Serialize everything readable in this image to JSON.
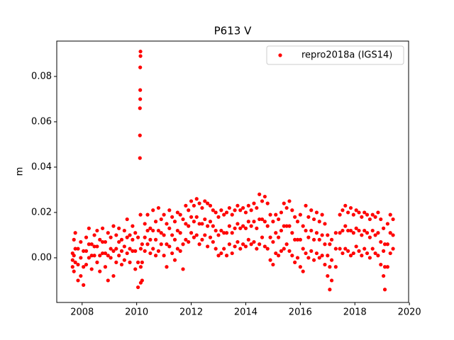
{
  "chart_data": {
    "type": "scatter",
    "title": "P613 V",
    "y_label": "m",
    "xlim": [
      2007.07,
      2019.97
    ],
    "xticks": [
      2008,
      2010,
      2012,
      2014,
      2016,
      2018,
      2020
    ],
    "ylim": [
      -0.0197,
      0.0956
    ],
    "yticks": [
      {
        "value": 0,
        "label": "0.00"
      },
      {
        "value": 0.02,
        "label": "0.02"
      },
      {
        "value": 0.04,
        "label": "0.04"
      },
      {
        "value": 0.06,
        "label": "0.06"
      },
      {
        "value": 0.08,
        "label": "0.08"
      }
    ],
    "legend": "upper right",
    "series": [
      {
        "name": "repro2018a (IGS14)",
        "color": "#ff0000",
        "x": [
          2007.65,
          2007.65,
          2007.65,
          2007.7,
          2007.7,
          2007.7,
          2007.75,
          2007.75,
          2007.75,
          2007.85,
          2007.85,
          2007.85,
          2007.95,
          2007.95,
          2007.95,
          2008.05,
          2008.05,
          2008.05,
          2008.15,
          2008.15,
          2008.15,
          2008.25,
          2008.25,
          2008.25,
          2008.35,
          2008.35,
          2008.35,
          2008.45,
          2008.45,
          2008.45,
          2008.55,
          2008.55,
          2008.55,
          2008.65,
          2008.65,
          2008.65,
          2008.75,
          2008.75,
          2008.75,
          2008.85,
          2008.85,
          2008.85,
          2008.95,
          2008.95,
          2008.95,
          2009.05,
          2009.05,
          2009.05,
          2009.15,
          2009.15,
          2009.15,
          2009.25,
          2009.25,
          2009.25,
          2009.35,
          2009.35,
          2009.35,
          2009.45,
          2009.45,
          2009.45,
          2009.55,
          2009.55,
          2009.55,
          2009.65,
          2009.65,
          2009.65,
          2009.75,
          2009.75,
          2009.75,
          2009.85,
          2009.85,
          2009.85,
          2009.95,
          2009.95,
          2009.95,
          2010.05,
          2010.05,
          2010.05,
          2010.12,
          2010.12,
          2010.12,
          2010.13,
          2010.13,
          2010.13,
          2010.14,
          2010.14,
          2010.14,
          2010.15,
          2010.15,
          2010.15,
          2010.2,
          2010.2,
          2010.2,
          2010.3,
          2010.3,
          2010.3,
          2010.4,
          2010.4,
          2010.4,
          2010.5,
          2010.5,
          2010.5,
          2010.6,
          2010.6,
          2010.6,
          2010.7,
          2010.7,
          2010.7,
          2010.8,
          2010.8,
          2010.8,
          2010.9,
          2010.9,
          2010.9,
          2011,
          2011,
          2011,
          2011.1,
          2011.1,
          2011.1,
          2011.2,
          2011.2,
          2011.2,
          2011.3,
          2011.3,
          2011.3,
          2011.4,
          2011.4,
          2011.4,
          2011.5,
          2011.5,
          2011.5,
          2011.6,
          2011.6,
          2011.6,
          2011.7,
          2011.7,
          2011.7,
          2011.8,
          2011.8,
          2011.8,
          2011.9,
          2011.9,
          2011.9,
          2012,
          2012,
          2012,
          2012.1,
          2012.1,
          2012.1,
          2012.2,
          2012.2,
          2012.2,
          2012.3,
          2012.3,
          2012.3,
          2012.4,
          2012.4,
          2012.4,
          2012.5,
          2012.5,
          2012.5,
          2012.6,
          2012.6,
          2012.6,
          2012.7,
          2012.7,
          2012.7,
          2012.8,
          2012.8,
          2012.8,
          2012.9,
          2012.9,
          2012.9,
          2013,
          2013,
          2013,
          2013.1,
          2013.1,
          2013.1,
          2013.2,
          2013.2,
          2013.2,
          2013.3,
          2013.3,
          2013.3,
          2013.4,
          2013.4,
          2013.4,
          2013.5,
          2013.5,
          2013.5,
          2013.6,
          2013.6,
          2013.6,
          2013.7,
          2013.7,
          2013.7,
          2013.8,
          2013.8,
          2013.8,
          2013.9,
          2013.9,
          2013.9,
          2014,
          2014,
          2014,
          2014.1,
          2014.1,
          2014.1,
          2014.2,
          2014.2,
          2014.2,
          2014.3,
          2014.3,
          2014.3,
          2014.4,
          2014.4,
          2014.4,
          2014.5,
          2014.5,
          2014.5,
          2014.6,
          2014.6,
          2014.6,
          2014.7,
          2014.7,
          2014.7,
          2014.8,
          2014.8,
          2014.8,
          2014.9,
          2014.9,
          2014.9,
          2015,
          2015,
          2015,
          2015.1,
          2015.1,
          2015.1,
          2015.2,
          2015.2,
          2015.2,
          2015.3,
          2015.3,
          2015.3,
          2015.4,
          2015.4,
          2015.4,
          2015.5,
          2015.5,
          2015.5,
          2015.6,
          2015.6,
          2015.6,
          2015.7,
          2015.7,
          2015.7,
          2015.8,
          2015.8,
          2015.8,
          2015.9,
          2015.9,
          2015.9,
          2016,
          2016,
          2016,
          2016.1,
          2016.1,
          2016.1,
          2016.2,
          2016.2,
          2016.2,
          2016.3,
          2016.3,
          2016.3,
          2016.4,
          2016.4,
          2016.4,
          2016.5,
          2016.5,
          2016.5,
          2016.6,
          2016.6,
          2016.6,
          2016.7,
          2016.7,
          2016.7,
          2016.8,
          2016.8,
          2016.8,
          2016.9,
          2016.9,
          2016.9,
          2017,
          2017,
          2017,
          2017.08,
          2017.08,
          2017.08,
          2017.15,
          2017.15,
          2017.15,
          2017.3,
          2017.3,
          2017.3,
          2017.45,
          2017.45,
          2017.45,
          2017.55,
          2017.55,
          2017.55,
          2017.65,
          2017.65,
          2017.65,
          2017.75,
          2017.75,
          2017.75,
          2017.85,
          2017.85,
          2017.85,
          2017.95,
          2017.95,
          2017.95,
          2018.05,
          2018.05,
          2018.05,
          2018.15,
          2018.15,
          2018.15,
          2018.25,
          2018.25,
          2018.25,
          2018.35,
          2018.35,
          2018.35,
          2018.45,
          2018.45,
          2018.45,
          2018.55,
          2018.55,
          2018.55,
          2018.65,
          2018.65,
          2018.65,
          2018.75,
          2018.75,
          2018.75,
          2018.85,
          2018.85,
          2018.85,
          2018.95,
          2018.95,
          2018.95,
          2019.05,
          2019.05,
          2019.05,
          2019.1,
          2019.1,
          2019.1,
          2019.2,
          2019.2,
          2019.2,
          2019.3,
          2019.3,
          2019.3,
          2019.4,
          2019.4,
          2019.4
        ],
        "values": [
          0.002,
          -0.001,
          -0.004,
          0.008,
          0.001,
          -0.006,
          0.011,
          0.004,
          -0.002,
          0.004,
          -0.003,
          -0.01,
          0.007,
          0,
          -0.008,
          0.003,
          -0.004,
          -0.012,
          0.009,
          0.003,
          -0.003,
          0.013,
          0.006,
          0,
          0.006,
          0.001,
          -0.005,
          0.01,
          0.005,
          0.001,
          0.012,
          0.005,
          -0.002,
          0.008,
          0.001,
          -0.006,
          0.013,
          0.007,
          0.002,
          0.007,
          0.002,
          -0.004,
          0.011,
          0.001,
          -0.01,
          0.009,
          0.004,
          0,
          0.014,
          0.003,
          -0.008,
          0.01,
          0.004,
          -0.002,
          0.013,
          0.007,
          0.001,
          0.008,
          0.003,
          -0.003,
          0.012,
          0.005,
          -0.001,
          0.017,
          0.009,
          0.002,
          0.01,
          0.004,
          -0.002,
          0.014,
          0.008,
          0.003,
          0.011,
          0.003,
          -0.005,
          0.009,
          -0.002,
          -0.013,
          0.044,
          0.054,
          0.066,
          0.07,
          0.074,
          0.084,
          0.089,
          0.091,
          0.019,
          0.004,
          -0.004,
          -0.011,
          0.006,
          -0.002,
          -0.01,
          0.015,
          0.009,
          0.003,
          0.019,
          0.012,
          0.006,
          0.013,
          0.008,
          0.002,
          0.021,
          0.012,
          0.004,
          0.016,
          0.008,
          0.001,
          0.022,
          0.012,
          0.003,
          0.017,
          0.011,
          0.006,
          0.019,
          0.01,
          0.001,
          0.015,
          0.006,
          -0.004,
          0.021,
          0.013,
          0.005,
          0.018,
          0.01,
          0.002,
          0.016,
          0.008,
          -0.001,
          0.02,
          0.012,
          0.004,
          0.019,
          0.011,
          0.003,
          0.017,
          0.006,
          -0.005,
          0.023,
          0.015,
          0.008,
          0.021,
          0.014,
          0.007,
          0.025,
          0.018,
          0.011,
          0.023,
          0.016,
          0.009,
          0.026,
          0.018,
          0.01,
          0.024,
          0.015,
          0.006,
          0.022,
          0.015,
          0.008,
          0.025,
          0.017,
          0.01,
          0.024,
          0.014,
          0.005,
          0.023,
          0.016,
          0.009,
          0.021,
          0.014,
          0.007,
          0.02,
          0.012,
          0.004,
          0.018,
          0.01,
          0.001,
          0.021,
          0.012,
          0.002,
          0.019,
          0.011,
          0.004,
          0.02,
          0.011,
          0.001,
          0.022,
          0.014,
          0.006,
          0.019,
          0.011,
          0.002,
          0.021,
          0.013,
          0.005,
          0.023,
          0.015,
          0.007,
          0.021,
          0.013,
          0.004,
          0.022,
          0.014,
          0.006,
          0.02,
          0.013,
          0.005,
          0.023,
          0.016,
          0.008,
          0.021,
          0.014,
          0.006,
          0.024,
          0.016,
          0.007,
          0.022,
          0.013,
          0.004,
          0.028,
          0.017,
          0.006,
          0.025,
          0.017,
          0.009,
          0.027,
          0.016,
          0.005,
          0.024,
          0.014,
          0.004,
          0.019,
          0.009,
          -0.001,
          0.016,
          0.007,
          -0.003,
          0.019,
          0.011,
          0.002,
          0.017,
          0.009,
          0.001,
          0.02,
          0.012,
          0.003,
          0.024,
          0.014,
          0.004,
          0.022,
          0.014,
          0.006,
          0.025,
          0.014,
          0.003,
          0.021,
          0.011,
          0.001,
          0.018,
          0.008,
          -0.002,
          0.016,
          0.008,
          0,
          0.019,
          0.008,
          -0.004,
          0.014,
          0.004,
          -0.006,
          0.023,
          0.012,
          0.002,
          0.018,
          0.009,
          0,
          0.021,
          0.012,
          0.003,
          0.017,
          0.008,
          -0.001,
          0.02,
          0.011,
          0.002,
          0.016,
          0.008,
          0,
          0.019,
          0.01,
          0.001,
          0.015,
          0.006,
          -0.003,
          0.01,
          0.001,
          -0.008,
          0.006,
          -0.004,
          -0.014,
          0.008,
          -0.001,
          -0.01,
          0.011,
          0.004,
          -0.004,
          0.019,
          0.011,
          0.004,
          0.021,
          0.012,
          0.002,
          0.023,
          0.014,
          0.004,
          0.02,
          0.012,
          0.003,
          0.022,
          0.012,
          0.001,
          0.019,
          0.011,
          0.002,
          0.021,
          0.013,
          0.005,
          0.02,
          0.012,
          0.003,
          0.018,
          0.01,
          0.001,
          0.02,
          0.012,
          0.004,
          0.019,
          0.011,
          0.002,
          0.017,
          0.009,
          0,
          0.019,
          0.012,
          0.004,
          0.018,
          0.01,
          0.002,
          0.02,
          0.011,
          0.001,
          0.017,
          0.007,
          -0.003,
          0.013,
          0.003,
          -0.008,
          0.006,
          -0.004,
          -0.014,
          0.015,
          0.006,
          -0.004,
          0.019,
          0.011,
          0.002,
          0.017,
          0.01,
          0.004
        ]
      }
    ]
  }
}
